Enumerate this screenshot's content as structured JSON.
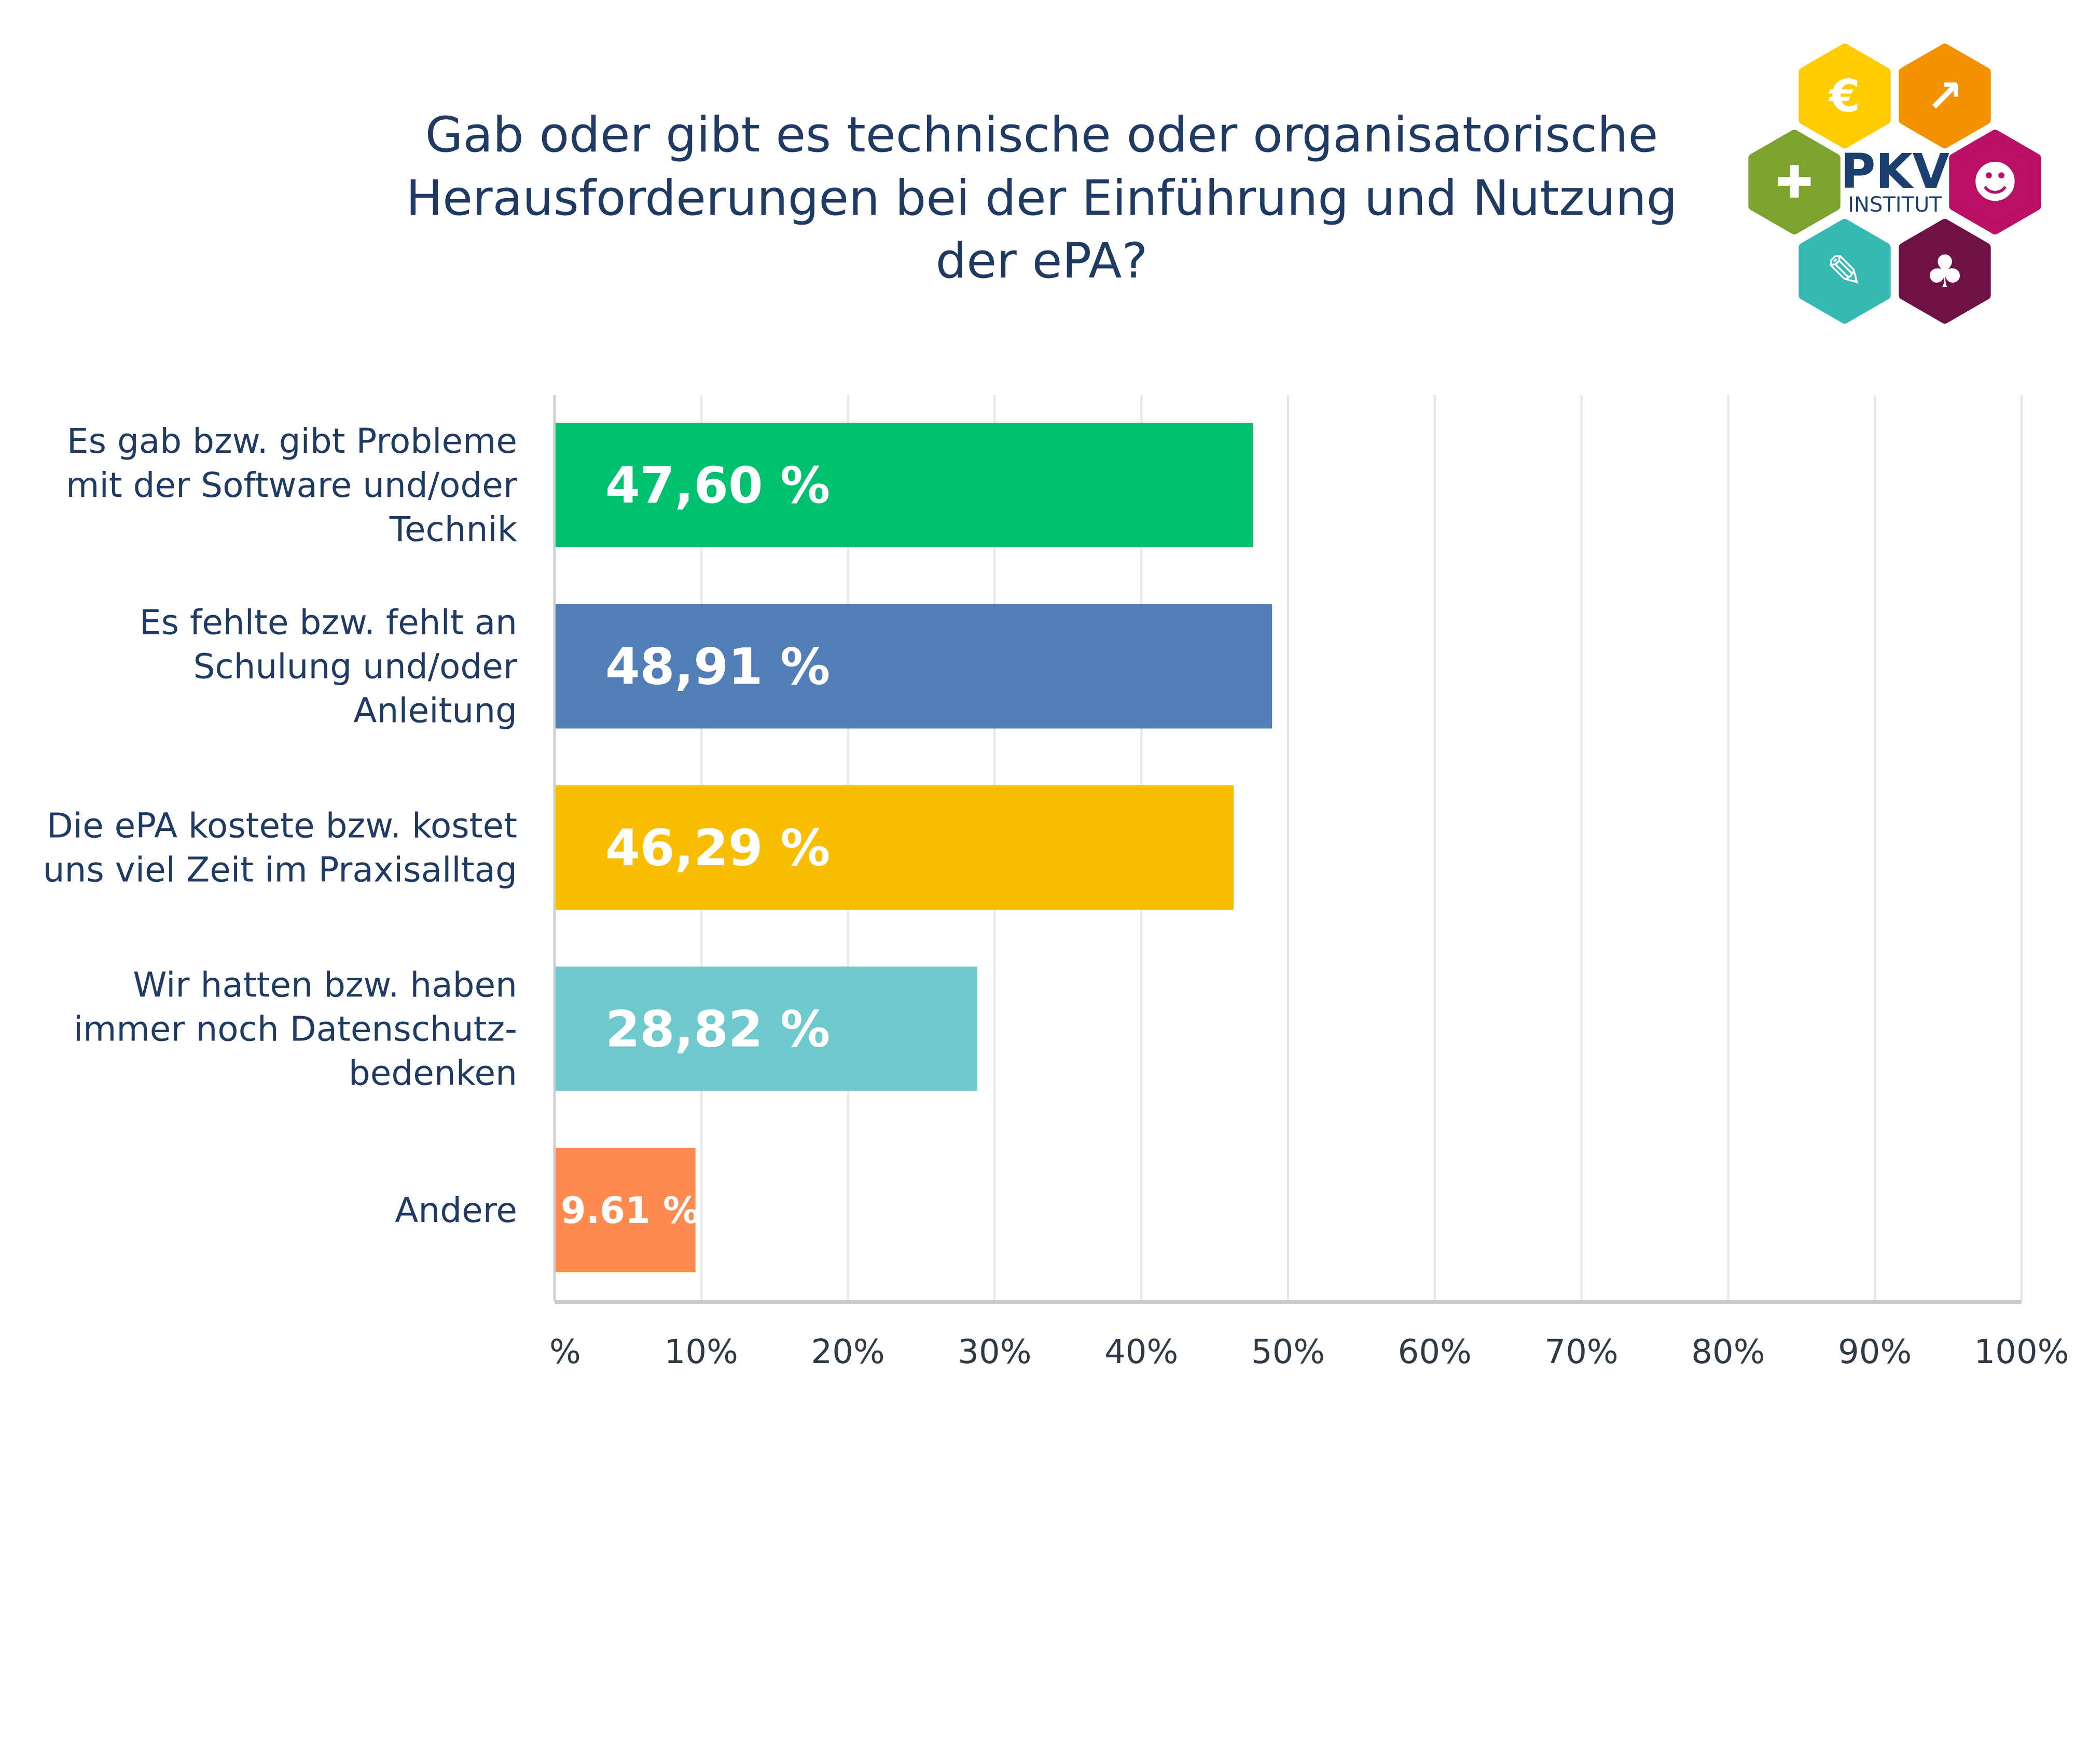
{
  "chart_data": {
    "type": "bar",
    "orientation": "horizontal",
    "title": "Gab oder gibt es technische oder organisatorische Herausforderungen bei der Einführung und Nutzung der ePA?",
    "title_lines": [
      "Gab oder gibt es technische oder organisatorische",
      "Herausforderungen bei der Einführung und Nutzung",
      "der ePA?"
    ],
    "categories": [
      [
        "Es gab bzw. gibt Probleme",
        "mit der Software und/oder",
        "Technik"
      ],
      [
        "Es fehlte bzw. fehlt an",
        "Schulung und/oder",
        "Anleitung"
      ],
      [
        "Die ePA kostete bzw. kostet",
        "uns viel Zeit im Praxisalltag"
      ],
      [
        "Wir hatten bzw. haben",
        "immer noch Datenschutz-",
        "bedenken"
      ],
      [
        "Andere"
      ]
    ],
    "values": [
      47.6,
      48.91,
      46.29,
      28.82,
      9.61
    ],
    "data_labels": [
      "47,60 %",
      "48,91 %",
      "46,29 %",
      "28,82 %",
      "9.61 %"
    ],
    "colors": [
      "#00c06f",
      "#517eb6",
      "#f9be00",
      "#6ec9cc",
      "#ff8b50"
    ],
    "xlim": [
      0,
      100
    ],
    "xticks": [
      "0%",
      "10%",
      "20%",
      "30%",
      "40%",
      "50%",
      "60%",
      "70%",
      "80%",
      "90%",
      "100%"
    ],
    "grid": "vertical",
    "legend": "none"
  },
  "logo": {
    "name": "PKV",
    "subtitle": "INSTITUT",
    "hexagons": [
      {
        "icon": "euro-icon",
        "color": "#ffcc00"
      },
      {
        "icon": "growth-chart-icon",
        "color": "#f39200"
      },
      {
        "icon": "puzzle-icon",
        "color": "#7ca22f"
      },
      {
        "icon": "people-talking-icon",
        "color": "#b90f64"
      },
      {
        "icon": "syringe-icon",
        "color": "#36b8b3"
      },
      {
        "icon": "tree-icon",
        "color": "#6e1144"
      }
    ]
  }
}
